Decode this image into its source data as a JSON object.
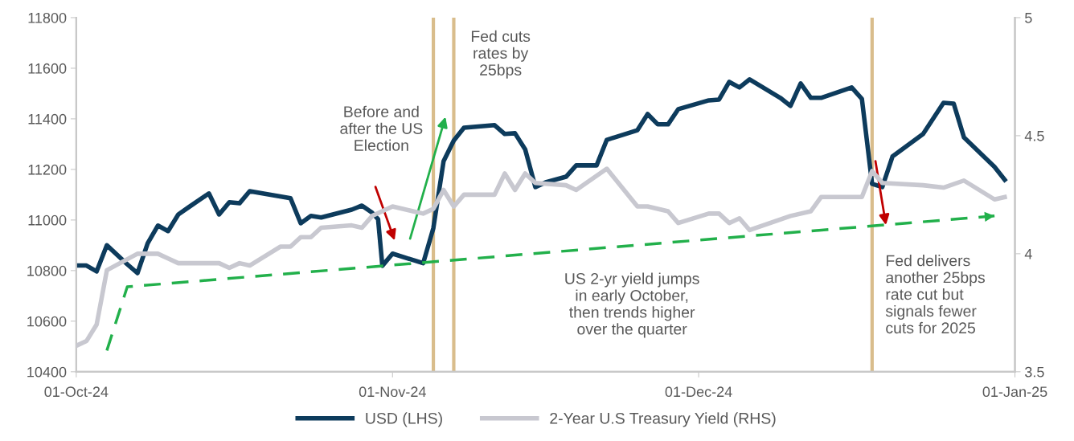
{
  "chart_data": {
    "type": "line",
    "xlim": [
      "2024-10-01",
      "2025-01-01"
    ],
    "xticks": [
      {
        "value": "2024-10-01",
        "label": "01-Oct-24"
      },
      {
        "value": "2024-11-01",
        "label": "01-Nov-24"
      },
      {
        "value": "2024-12-01",
        "label": "01-Dec-24"
      },
      {
        "value": "2025-01-01",
        "label": "01-Jan-25"
      }
    ],
    "ylim": [
      10400,
      11800
    ],
    "yticks": [
      10400,
      10600,
      10800,
      11000,
      11200,
      11400,
      11600,
      11800
    ],
    "y2lim": [
      3.5,
      5
    ],
    "y2ticks": [
      3.5,
      4,
      4.5,
      5
    ],
    "grid": false,
    "legend": "bottom",
    "marker": "none",
    "series": [
      {
        "name": "USD (LHS)",
        "color": "#0d3b5c",
        "line_style": "solid",
        "x": [
          "2024-10-01",
          "2024-10-02",
          "2024-10-03",
          "2024-10-04",
          "2024-10-06",
          "2024-10-07",
          "2024-10-08",
          "2024-10-09",
          "2024-10-10",
          "2024-10-11",
          "2024-10-12",
          "2024-10-14",
          "2024-10-15",
          "2024-10-16",
          "2024-10-17",
          "2024-10-18",
          "2024-10-22",
          "2024-10-23",
          "2024-10-24",
          "2024-10-25",
          "2024-10-28",
          "2024-10-29",
          "2024-10-30",
          "2024-10-30T14:00",
          "2024-10-31",
          "2024-11-01",
          "2024-11-04",
          "2024-11-05",
          "2024-11-06",
          "2024-11-07",
          "2024-11-08",
          "2024-11-11",
          "2024-11-12",
          "2024-11-13",
          "2024-11-14",
          "2024-11-15",
          "2024-11-16",
          "2024-11-18",
          "2024-11-19",
          "2024-11-21",
          "2024-11-22",
          "2024-11-25",
          "2024-11-26",
          "2024-11-27",
          "2024-11-28",
          "2024-11-29",
          "2024-12-02",
          "2024-12-03",
          "2024-12-04",
          "2024-12-05",
          "2024-12-06",
          "2024-12-09",
          "2024-12-10",
          "2024-12-11",
          "2024-12-12",
          "2024-12-13",
          "2024-12-16",
          "2024-12-17",
          "2024-12-18",
          "2024-12-19",
          "2024-12-20",
          "2024-12-23",
          "2024-12-25",
          "2024-12-26",
          "2024-12-27",
          "2024-12-30",
          "2024-12-31"
        ],
        "values": [
          10820,
          10820,
          10797,
          10900,
          10825,
          10790,
          10908,
          10978,
          10956,
          11022,
          11050,
          11105,
          11022,
          11070,
          11066,
          11114,
          11086,
          10987,
          11016,
          11010,
          11041,
          11057,
          11029,
          11003,
          10819,
          10867,
          10829,
          10968,
          11232,
          11314,
          11365,
          11375,
          11340,
          11343,
          11279,
          11130,
          11149,
          11171,
          11216,
          11216,
          11317,
          11355,
          11419,
          11378,
          11378,
          11438,
          11473,
          11476,
          11546,
          11524,
          11556,
          11483,
          11451,
          11540,
          11483,
          11483,
          11524,
          11479,
          11143,
          11130,
          11251,
          11340,
          11463,
          11460,
          11327,
          11210,
          11159
        ]
      },
      {
        "name": "2-Year U.S Treasury Yield (RHS)",
        "color": "#c8c8d0",
        "axis": "y2",
        "line_style": "solid",
        "x": [
          "2024-10-01",
          "2024-10-02",
          "2024-10-03",
          "2024-10-04",
          "2024-10-07",
          "2024-10-09",
          "2024-10-10",
          "2024-10-11",
          "2024-10-15",
          "2024-10-16",
          "2024-10-17",
          "2024-10-18",
          "2024-10-21",
          "2024-10-22",
          "2024-10-23",
          "2024-10-24",
          "2024-10-25",
          "2024-10-28",
          "2024-10-29",
          "2024-10-30",
          "2024-11-01",
          "2024-11-03",
          "2024-11-04",
          "2024-11-05",
          "2024-11-06",
          "2024-11-07",
          "2024-11-08",
          "2024-11-11",
          "2024-11-12",
          "2024-11-13",
          "2024-11-14",
          "2024-11-15",
          "2024-11-18",
          "2024-11-19",
          "2024-11-22",
          "2024-11-25",
          "2024-11-26",
          "2024-11-28",
          "2024-11-29",
          "2024-12-02",
          "2024-12-03",
          "2024-12-04",
          "2024-12-05",
          "2024-12-06",
          "2024-12-10",
          "2024-12-12",
          "2024-12-13",
          "2024-12-17",
          "2024-12-18",
          "2024-12-19",
          "2024-12-23",
          "2024-12-25",
          "2024-12-27",
          "2024-12-30",
          "2024-12-31"
        ],
        "values": [
          3.61,
          3.63,
          3.7,
          3.93,
          4.0,
          4.0,
          3.98,
          3.96,
          3.96,
          3.94,
          3.96,
          3.95,
          4.03,
          4.03,
          4.07,
          4.07,
          4.11,
          4.12,
          4.11,
          4.16,
          4.2,
          4.18,
          4.17,
          4.19,
          4.27,
          4.2,
          4.25,
          4.25,
          4.34,
          4.27,
          4.34,
          4.3,
          4.29,
          4.27,
          4.36,
          4.2,
          4.2,
          4.18,
          4.13,
          4.17,
          4.17,
          4.13,
          4.15,
          4.1,
          4.16,
          4.18,
          4.24,
          4.24,
          4.35,
          4.3,
          4.29,
          4.28,
          4.31,
          4.23,
          4.24
        ]
      },
      {
        "color": "#22b04b",
        "axis": "y2",
        "line_style": "dashed",
        "x": [
          "2024-10-04",
          "2024-10-06",
          "2024-12-30"
        ],
        "values": [
          3.59,
          3.86,
          4.16
        ]
      }
    ],
    "ref_lines": [
      {
        "axis": "x",
        "value": "2024-11-05",
        "color": "#d9bd8c",
        "line_style": "solid"
      },
      {
        "axis": "x",
        "value": "2024-11-07",
        "color": "#d9bd8c",
        "line_style": "solid"
      },
      {
        "axis": "x",
        "value": "2024-12-18",
        "color": "#d9bd8c",
        "line_style": "solid"
      }
    ],
    "annotations": [
      "Before and\nafter the US\nElection",
      "Fed cuts\nrates by\n25bps",
      "US 2-yr yield jumps\nin early October,\nthen trends higher\nover the quarter",
      "Fed delivers\nanother 25bps\nrate cut but\nsignals fewer\ncuts for 2025"
    ]
  }
}
